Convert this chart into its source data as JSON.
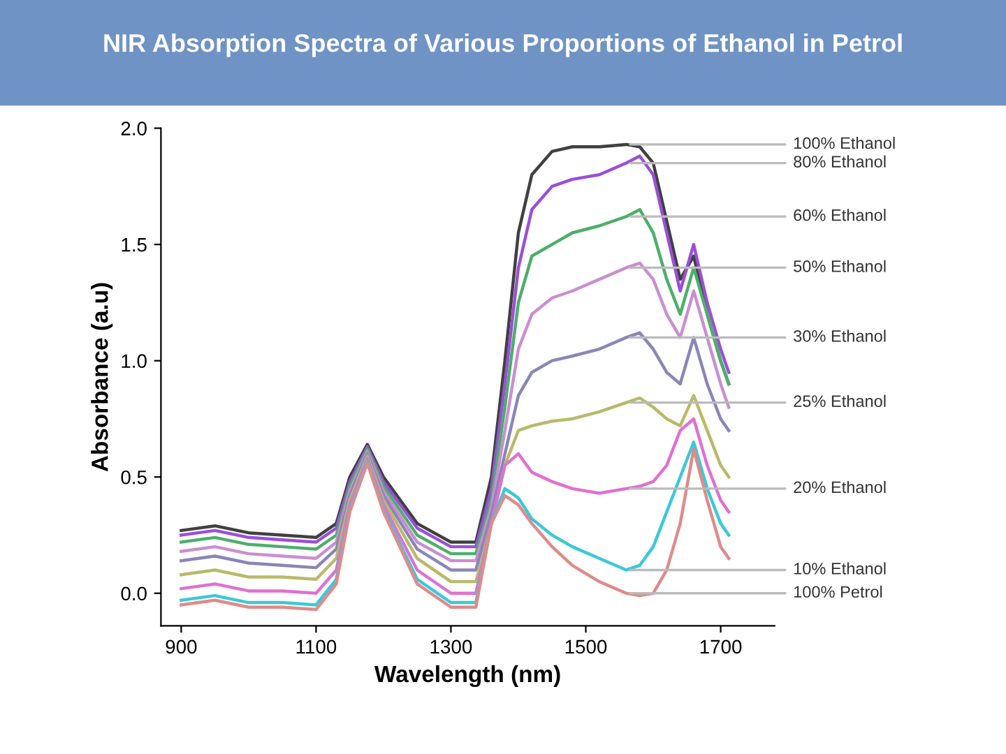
{
  "chart_data": {
    "type": "line",
    "title": "NIR Absorption Spectra of Various Proportions of Ethanol in Petrol",
    "xlabel": "Wavelength (nm)",
    "ylabel": "Absorbance (a.u)",
    "x": [
      900,
      950,
      1000,
      1050,
      1100,
      1130,
      1150,
      1176,
      1200,
      1250,
      1300,
      1337,
      1360,
      1380,
      1400,
      1420,
      1450,
      1480,
      1520,
      1560,
      1580,
      1600,
      1620,
      1640,
      1660,
      1680,
      1700,
      1712
    ],
    "series": [
      {
        "name": "100% Ethanol",
        "color": "#404040",
        "values": [
          0.27,
          0.29,
          0.26,
          0.25,
          0.24,
          0.3,
          0.5,
          0.64,
          0.5,
          0.3,
          0.22,
          0.22,
          0.5,
          1.0,
          1.55,
          1.8,
          1.9,
          1.92,
          1.92,
          1.93,
          1.92,
          1.85,
          1.6,
          1.35,
          1.45,
          1.2,
          1.0,
          0.9
        ]
      },
      {
        "name": "80% Ethanol",
        "color": "#9b4fd8",
        "values": [
          0.25,
          0.27,
          0.24,
          0.23,
          0.22,
          0.28,
          0.48,
          0.63,
          0.48,
          0.28,
          0.2,
          0.2,
          0.45,
          0.9,
          1.4,
          1.65,
          1.75,
          1.78,
          1.8,
          1.85,
          1.88,
          1.8,
          1.55,
          1.3,
          1.5,
          1.25,
          1.05,
          0.95
        ]
      },
      {
        "name": "60% Ethanol",
        "color": "#4caf6a",
        "values": [
          0.22,
          0.24,
          0.21,
          0.2,
          0.19,
          0.25,
          0.46,
          0.62,
          0.46,
          0.25,
          0.17,
          0.17,
          0.4,
          0.8,
          1.25,
          1.45,
          1.5,
          1.55,
          1.58,
          1.62,
          1.65,
          1.55,
          1.35,
          1.2,
          1.4,
          1.2,
          1.0,
          0.9
        ]
      },
      {
        "name": "50% Ethanol",
        "color": "#c98fd0",
        "values": [
          0.18,
          0.2,
          0.17,
          0.16,
          0.15,
          0.22,
          0.44,
          0.61,
          0.44,
          0.22,
          0.14,
          0.14,
          0.37,
          0.7,
          1.05,
          1.2,
          1.27,
          1.3,
          1.35,
          1.4,
          1.42,
          1.35,
          1.2,
          1.1,
          1.3,
          1.1,
          0.9,
          0.8
        ]
      },
      {
        "name": "30% Ethanol",
        "color": "#8a86b8",
        "values": [
          0.14,
          0.16,
          0.13,
          0.12,
          0.11,
          0.19,
          0.42,
          0.6,
          0.42,
          0.19,
          0.1,
          0.1,
          0.34,
          0.6,
          0.85,
          0.95,
          1.0,
          1.02,
          1.05,
          1.1,
          1.12,
          1.05,
          0.95,
          0.9,
          1.1,
          0.9,
          0.75,
          0.7
        ]
      },
      {
        "name": "25% Ethanol",
        "color": "#b9b96a",
        "values": [
          0.08,
          0.1,
          0.07,
          0.07,
          0.06,
          0.15,
          0.4,
          0.59,
          0.4,
          0.15,
          0.05,
          0.05,
          0.3,
          0.55,
          0.7,
          0.72,
          0.74,
          0.75,
          0.78,
          0.82,
          0.84,
          0.8,
          0.75,
          0.72,
          0.85,
          0.7,
          0.55,
          0.5
        ]
      },
      {
        "name": "20% Ethanol",
        "color": "#e070d0",
        "values": [
          0.02,
          0.04,
          0.01,
          0.01,
          0.0,
          0.1,
          0.38,
          0.58,
          0.38,
          0.1,
          0.0,
          0.0,
          0.3,
          0.55,
          0.6,
          0.52,
          0.48,
          0.45,
          0.43,
          0.45,
          0.46,
          0.48,
          0.55,
          0.7,
          0.75,
          0.55,
          0.4,
          0.35
        ]
      },
      {
        "name": "10% Ethanol",
        "color": "#3cc8d8",
        "values": [
          -0.03,
          -0.01,
          -0.04,
          -0.04,
          -0.05,
          0.06,
          0.36,
          0.57,
          0.36,
          0.06,
          -0.04,
          -0.04,
          0.3,
          0.45,
          0.41,
          0.32,
          0.25,
          0.2,
          0.15,
          0.1,
          0.12,
          0.2,
          0.35,
          0.5,
          0.65,
          0.45,
          0.3,
          0.25
        ]
      },
      {
        "name": "100% Petrol",
        "color": "#e08a8a",
        "values": [
          -0.05,
          -0.03,
          -0.06,
          -0.06,
          -0.07,
          0.04,
          0.35,
          0.56,
          0.35,
          0.04,
          -0.06,
          -0.06,
          0.3,
          0.42,
          0.38,
          0.3,
          0.2,
          0.12,
          0.05,
          0.0,
          -0.01,
          0.0,
          0.1,
          0.3,
          0.62,
          0.4,
          0.2,
          0.15
        ]
      }
    ],
    "xlim": [
      870,
      1780
    ],
    "ylim": [
      -0.14,
      2.0
    ],
    "xticks": [
      900,
      1100,
      1300,
      1500,
      1700
    ],
    "yticks": [
      {
        "value": 0.0,
        "label": "0.0"
      },
      {
        "value": 0.5,
        "label": "0.5"
      },
      {
        "value": 1.0,
        "label": "1.0"
      },
      {
        "value": 1.5,
        "label": "1.5"
      },
      {
        "value": 2.0,
        "label": "2.0"
      }
    ],
    "grid": false,
    "legend": false,
    "marker": "none",
    "line_style": "solid"
  }
}
